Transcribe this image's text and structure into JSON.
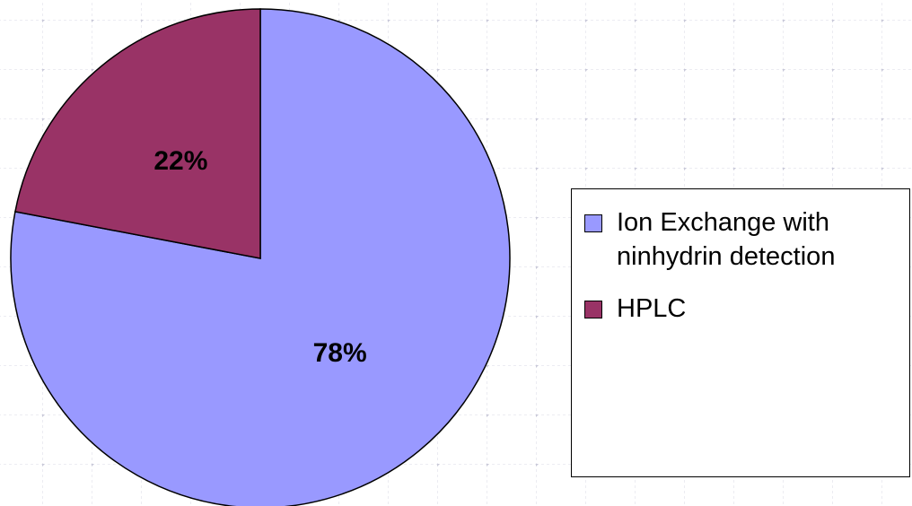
{
  "chart_data": {
    "type": "pie",
    "categories": [
      "Ion Exchange with ninhydrin detection",
      "HPLC"
    ],
    "values": [
      78,
      22
    ],
    "value_labels": [
      "78%",
      "22%"
    ],
    "colors": [
      "#9999ff",
      "#993366"
    ],
    "legend": "right"
  }
}
